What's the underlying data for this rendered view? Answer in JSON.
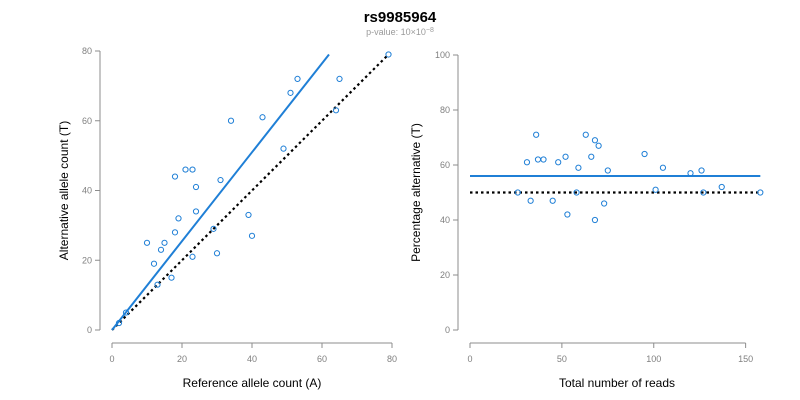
{
  "title": "rs9985964",
  "subtitle": {
    "prefix": "p-value: 10",
    "times": "×",
    "base": "10",
    "exponent": "−8"
  },
  "colors": {
    "accent": "#1f7fd6",
    "reference": "#000000",
    "axis": "#8c8c8c"
  },
  "chart_data": [
    {
      "type": "scatter",
      "xlabel": "Reference allele count (A)",
      "ylabel": "Alternative allele count (T)",
      "xlim": [
        0,
        80
      ],
      "ylim": [
        0,
        80
      ],
      "xticks": [
        0,
        20,
        40,
        60,
        80
      ],
      "yticks": [
        0,
        20,
        40,
        60,
        80
      ],
      "points": [
        {
          "x": 2,
          "y": 2
        },
        {
          "x": 4,
          "y": 5
        },
        {
          "x": 10,
          "y": 25
        },
        {
          "x": 12,
          "y": 19
        },
        {
          "x": 13,
          "y": 13
        },
        {
          "x": 14,
          "y": 23
        },
        {
          "x": 15,
          "y": 25
        },
        {
          "x": 17,
          "y": 15
        },
        {
          "x": 18,
          "y": 28
        },
        {
          "x": 18,
          "y": 44
        },
        {
          "x": 19,
          "y": 32
        },
        {
          "x": 21,
          "y": 46
        },
        {
          "x": 23,
          "y": 46
        },
        {
          "x": 23,
          "y": 21
        },
        {
          "x": 24,
          "y": 41
        },
        {
          "x": 24,
          "y": 34
        },
        {
          "x": 29,
          "y": 29
        },
        {
          "x": 30,
          "y": 22
        },
        {
          "x": 31,
          "y": 43
        },
        {
          "x": 34,
          "y": 60
        },
        {
          "x": 39,
          "y": 33
        },
        {
          "x": 40,
          "y": 27
        },
        {
          "x": 43,
          "y": 61
        },
        {
          "x": 49,
          "y": 52
        },
        {
          "x": 51,
          "y": 68
        },
        {
          "x": 53,
          "y": 72
        },
        {
          "x": 64,
          "y": 63
        },
        {
          "x": 65,
          "y": 72
        },
        {
          "x": 79,
          "y": 79
        }
      ],
      "fit_line": {
        "x": [
          0,
          62
        ],
        "y": [
          0,
          79
        ]
      },
      "reference_line": {
        "x": [
          0,
          79
        ],
        "y": [
          0,
          79
        ]
      },
      "grid": false
    },
    {
      "type": "scatter",
      "xlabel": "Total number of reads",
      "ylabel": "Percentage alternative (T)",
      "xlim": [
        0,
        160
      ],
      "ylim": [
        0,
        100
      ],
      "xticks": [
        0,
        50,
        100,
        150
      ],
      "yticks": [
        0,
        20,
        40,
        60,
        80,
        100
      ],
      "points": [
        {
          "x": 26,
          "y": 50
        },
        {
          "x": 31,
          "y": 61
        },
        {
          "x": 33,
          "y": 47
        },
        {
          "x": 36,
          "y": 71
        },
        {
          "x": 37,
          "y": 62
        },
        {
          "x": 40,
          "y": 62
        },
        {
          "x": 45,
          "y": 47
        },
        {
          "x": 48,
          "y": 61
        },
        {
          "x": 52,
          "y": 63
        },
        {
          "x": 53,
          "y": 42
        },
        {
          "x": 58,
          "y": 50
        },
        {
          "x": 59,
          "y": 59
        },
        {
          "x": 63,
          "y": 71
        },
        {
          "x": 66,
          "y": 63
        },
        {
          "x": 68,
          "y": 69
        },
        {
          "x": 68,
          "y": 40
        },
        {
          "x": 70,
          "y": 67
        },
        {
          "x": 73,
          "y": 46
        },
        {
          "x": 75,
          "y": 58
        },
        {
          "x": 95,
          "y": 64
        },
        {
          "x": 101,
          "y": 51
        },
        {
          "x": 105,
          "y": 59
        },
        {
          "x": 120,
          "y": 57
        },
        {
          "x": 126,
          "y": 58
        },
        {
          "x": 127,
          "y": 50
        },
        {
          "x": 137,
          "y": 52
        },
        {
          "x": 158,
          "y": 50
        }
      ],
      "fit_line": {
        "x": [
          0,
          158
        ],
        "y": [
          56,
          56
        ]
      },
      "reference_line": {
        "x": [
          0,
          158
        ],
        "y": [
          50,
          50
        ]
      },
      "grid": false
    }
  ]
}
